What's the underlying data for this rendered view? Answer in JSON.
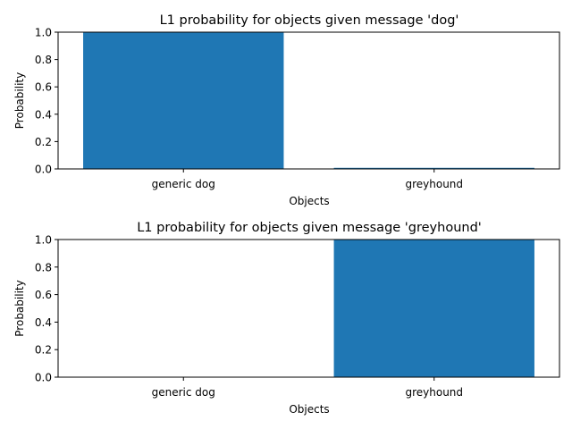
{
  "chart_data": [
    {
      "type": "bar",
      "title": "L1 probability for objects given message 'dog'",
      "xlabel": "Objects",
      "ylabel": "Probability",
      "categories": [
        "generic dog",
        "greyhound"
      ],
      "values": [
        1.0,
        0.008
      ],
      "ylim": [
        0,
        1
      ],
      "yticks": [
        "0.0",
        "0.2",
        "0.4",
        "0.6",
        "0.8",
        "1.0"
      ],
      "bar_color": "#1f77b4",
      "grid": false
    },
    {
      "type": "bar",
      "title": "L1 probability for objects given message 'greyhound'",
      "xlabel": "Objects",
      "ylabel": "Probability",
      "categories": [
        "generic dog",
        "greyhound"
      ],
      "values": [
        0.0,
        1.0
      ],
      "ylim": [
        0,
        1
      ],
      "yticks": [
        "0.0",
        "0.2",
        "0.4",
        "0.6",
        "0.8",
        "1.0"
      ],
      "bar_color": "#1f77b4",
      "grid": false
    }
  ]
}
